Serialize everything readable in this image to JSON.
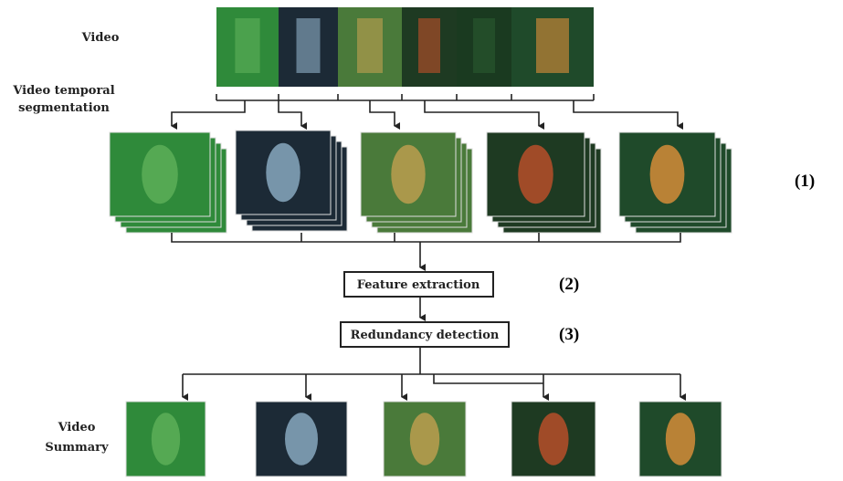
{
  "labels": {
    "video": "Video",
    "segmentation": [
      "Video temporal",
      "segmentation"
    ],
    "summary": [
      "Video",
      "Summary"
    ]
  },
  "steps": [
    {
      "id": "(1)"
    },
    {
      "id": "(2)",
      "label": "Feature extraction"
    },
    {
      "id": "(3)",
      "label": "Redundancy detection"
    }
  ]
}
